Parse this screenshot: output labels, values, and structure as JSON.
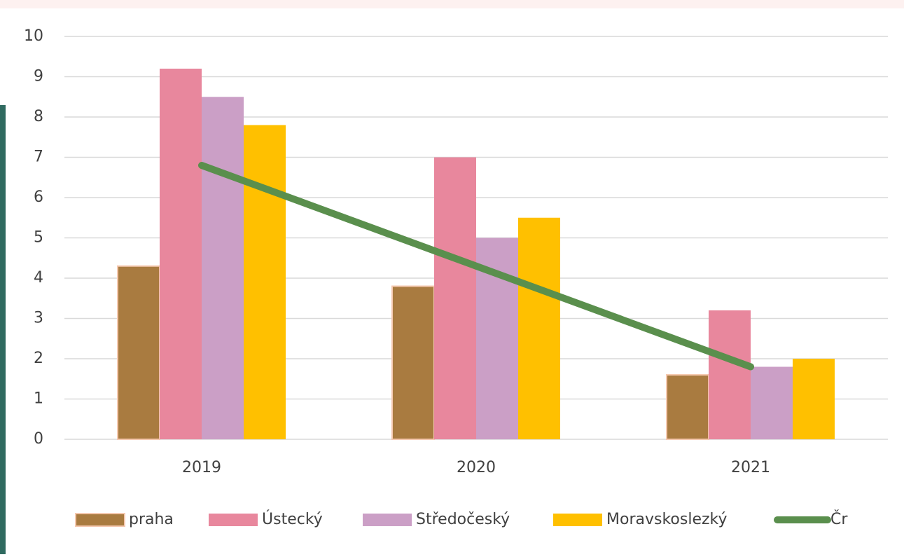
{
  "chart_data": {
    "type": "bar",
    "categories": [
      "2019",
      "2020",
      "2021"
    ],
    "series": [
      {
        "name": "praha",
        "color": "#a97b40",
        "values": [
          4.3,
          3.8,
          1.6
        ]
      },
      {
        "name": "Ústecký",
        "color": "#e8879d",
        "values": [
          9.2,
          7.0,
          3.2
        ]
      },
      {
        "name": "Středočeský",
        "color": "#cb9fc6",
        "values": [
          8.5,
          5.0,
          1.8
        ]
      },
      {
        "name": "Moravskoslezký",
        "color": "#ffc000",
        "values": [
          7.8,
          5.5,
          2.0
        ]
      },
      {
        "name": "Čr",
        "color": "#5a8f4d",
        "type": "line",
        "values": [
          6.8,
          4.3,
          1.8
        ]
      }
    ],
    "ylim": [
      0,
      10
    ],
    "yticks": [
      0,
      1,
      2,
      3,
      4,
      5,
      6,
      7,
      8,
      9,
      10
    ],
    "grid": true,
    "legend": "bottom"
  }
}
